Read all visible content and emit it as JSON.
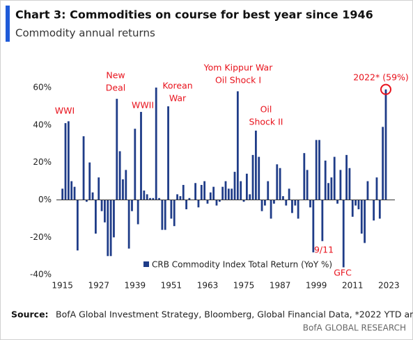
{
  "chart_data": {
    "type": "bar",
    "title": "Chart 3: Commodities on course for best year since 1946",
    "subtitle": "Commodity annual returns",
    "legend": "CRB Commodity Index Total Return (YoY %)",
    "source_label": "Source:",
    "source": "BofA Global Investment Strategy, Bloomberg, Global Financial Data, *2022 YTD annualized",
    "footer": "BofA GLOBAL RESEARCH",
    "color": "#1f3c88",
    "annotations": [
      [
        "WWI"
      ],
      [
        "New",
        "Deal"
      ],
      [
        "WWII"
      ],
      [
        "Korean",
        "War"
      ],
      [
        "Yom Kippur War",
        "Oil Shock I"
      ],
      [
        "Oil",
        "Shock II"
      ],
      [
        "9/11"
      ],
      [
        "GFC"
      ],
      [
        "2022* (59%)"
      ]
    ],
    "x": [
      1915,
      1916,
      1917,
      1918,
      1919,
      1920,
      1921,
      1922,
      1923,
      1924,
      1925,
      1926,
      1927,
      1928,
      1929,
      1930,
      1931,
      1932,
      1933,
      1934,
      1935,
      1936,
      1937,
      1938,
      1939,
      1940,
      1941,
      1942,
      1943,
      1944,
      1945,
      1946,
      1947,
      1948,
      1949,
      1950,
      1951,
      1952,
      1953,
      1954,
      1955,
      1956,
      1957,
      1958,
      1959,
      1960,
      1961,
      1962,
      1963,
      1964,
      1965,
      1966,
      1967,
      1968,
      1969,
      1970,
      1971,
      1972,
      1973,
      1974,
      1975,
      1976,
      1977,
      1978,
      1979,
      1980,
      1981,
      1982,
      1983,
      1984,
      1985,
      1986,
      1987,
      1988,
      1989,
      1990,
      1991,
      1992,
      1993,
      1994,
      1995,
      1996,
      1997,
      1998,
      1999,
      2000,
      2001,
      2002,
      2003,
      2004,
      2005,
      2006,
      2007,
      2008,
      2009,
      2010,
      2011,
      2012,
      2013,
      2014,
      2015,
      2016,
      2017,
      2018,
      2019,
      2020,
      2021,
      2022
    ],
    "values": [
      6,
      41,
      42,
      10,
      7,
      -27,
      0,
      34,
      -1,
      20,
      4,
      -18,
      12,
      -6,
      -12,
      -30,
      -30,
      -20,
      54,
      26,
      11,
      16,
      -26,
      -6,
      38,
      -13,
      47,
      5,
      3,
      1,
      1,
      60,
      1,
      -16,
      -16,
      50,
      -10,
      -14,
      3,
      2,
      8,
      -5,
      1,
      0,
      9,
      -4,
      8,
      10,
      -2,
      4,
      7,
      -3,
      -1,
      7,
      10,
      6,
      6,
      15,
      58,
      10,
      -1,
      14,
      3,
      24,
      37,
      23,
      -6,
      -3,
      10,
      -10,
      -2,
      19,
      17,
      2,
      -3,
      6,
      -7,
      -3,
      -10,
      0,
      25,
      16,
      -4,
      -28,
      32,
      32,
      -22,
      21,
      9,
      12,
      23,
      -2,
      16,
      -36,
      24,
      17,
      -9,
      -3,
      -5,
      -18,
      -23,
      10,
      0,
      -11,
      12,
      -10,
      39,
      59
    ],
    "xlim": [
      1913,
      2025
    ],
    "xticks": [
      1915,
      1927,
      1939,
      1951,
      1963,
      1975,
      1987,
      1999,
      2011,
      2023
    ],
    "ylim": [
      -44,
      70
    ],
    "yticks": [
      {
        "value": 60,
        "label": "60%"
      },
      {
        "value": 40,
        "label": "40%"
      },
      {
        "value": 20,
        "label": "20%"
      },
      {
        "value": 0,
        "label": "0%"
      },
      {
        "value": -20,
        "label": "-20%"
      },
      {
        "value": -40,
        "label": "-40%"
      }
    ]
  }
}
